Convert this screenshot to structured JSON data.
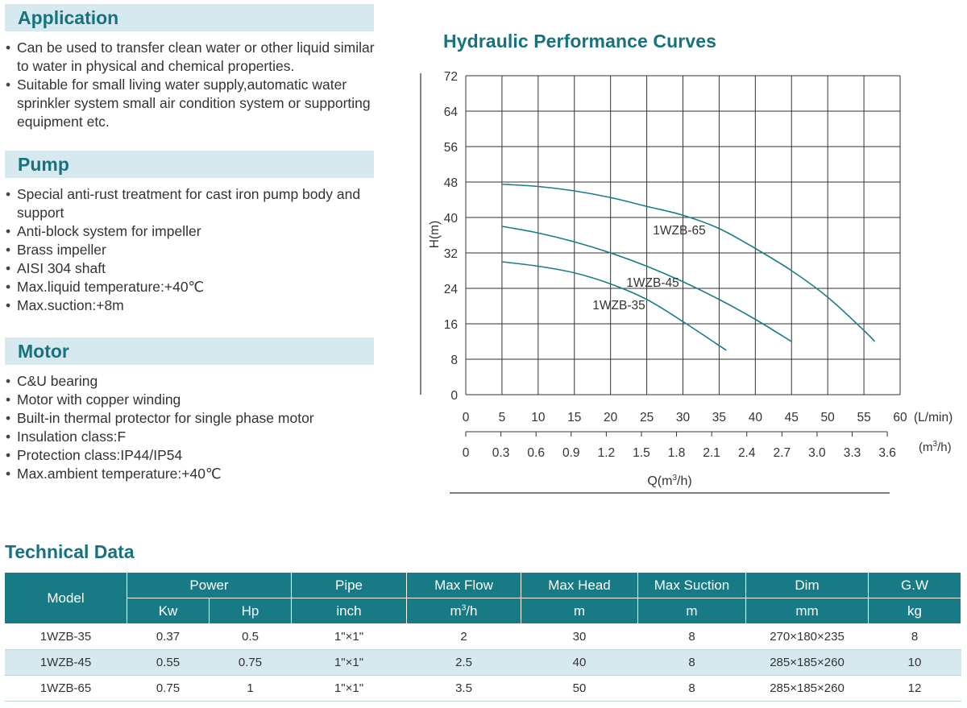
{
  "application": {
    "title": "Application",
    "items": [
      "Can be used to transfer clean water or other liquid similar to water in physical and chemical properties.",
      "Suitable for small living water supply,automatic water sprinkler system small air condition system or supporting equipment etc."
    ]
  },
  "pump": {
    "title": "Pump",
    "items": [
      "Special anti-rust treatment for cast iron pump body and support",
      "Anti-block system for impeller",
      "Brass impeller",
      "AISI 304 shaft",
      "Max.liquid temperature:+40℃",
      "Max.suction:+8m"
    ]
  },
  "motor": {
    "title": "Motor",
    "items": [
      "C&U bearing",
      "Motor with copper winding",
      "Built-in thermal protector for single phase motor",
      "Insulation class:F",
      "Protection class:IP44/IP54",
      "Max.ambient temperature:+40℃"
    ]
  },
  "chart_data": {
    "type": "line",
    "title": "Hydraulic Performance Curves",
    "ylabel": "H(m)",
    "xlabel_prefix": "Q(m",
    "xlabel_sup": "3",
    "xlabel_suffix": "/h)",
    "ylim": [
      0,
      72
    ],
    "yticks": [
      "0",
      "8",
      "16",
      "24",
      "32",
      "40",
      "48",
      "56",
      "64",
      "72"
    ],
    "xlim": [
      0,
      60
    ],
    "x_lmin_ticks": [
      "0",
      "5",
      "10",
      "15",
      "20",
      "25",
      "30",
      "35",
      "40",
      "45",
      "50",
      "55",
      "60"
    ],
    "x_lmin_unit": "(L/min)",
    "x_m3h_ticks": [
      "0",
      "0.3",
      "0.6",
      "0.9",
      "1.2",
      "1.5",
      "1.8",
      "2.1",
      "2.4",
      "2.7",
      "3.0",
      "3.3",
      "3.6"
    ],
    "x_m3h_unit_prefix": "(m",
    "x_m3h_unit_sup": "3",
    "x_m3h_unit_suffix": "/h)",
    "grid": true,
    "series": [
      {
        "name": "1WZB-65",
        "x": [
          5,
          10,
          15,
          20,
          25,
          30,
          35,
          40,
          45,
          50,
          55,
          56.5
        ],
        "y": [
          47.5,
          47,
          46,
          44.5,
          42.5,
          40.5,
          37.5,
          33,
          28,
          22,
          14.5,
          12
        ]
      },
      {
        "name": "1WZB-45",
        "x": [
          5,
          10,
          15,
          20,
          25,
          30,
          35,
          40,
          45
        ],
        "y": [
          38,
          36.5,
          34.5,
          32,
          29,
          25.5,
          21.5,
          17,
          12
        ]
      },
      {
        "name": "1WZB-35",
        "x": [
          5,
          10,
          15,
          20,
          25,
          30,
          36
        ],
        "y": [
          30,
          29,
          27.5,
          25,
          21.5,
          16.5,
          10
        ]
      }
    ]
  },
  "tech": {
    "title": "Technical Data",
    "headers": {
      "model": "Model",
      "power": "Power",
      "kw": "Kw",
      "hp": "Hp",
      "pipe": "Pipe",
      "pipe_unit": "inch",
      "max_flow": "Max Flow",
      "max_flow_unit_prefix": "m",
      "max_flow_unit_sup": "3",
      "max_flow_unit_suffix": "/h",
      "max_head": "Max Head",
      "max_head_unit": "m",
      "max_suction": "Max Suction",
      "max_suction_unit": "m",
      "dim": "Dim",
      "dim_unit": "mm",
      "gw": "G.W",
      "gw_unit": "kg"
    },
    "rows": [
      {
        "model": "1WZB-35",
        "kw": "0.37",
        "hp": "0.5",
        "pipe": "1\"×1\"",
        "flow": "2",
        "head": "30",
        "suction": "8",
        "dim": "270×180×235",
        "gw": "8"
      },
      {
        "model": "1WZB-45",
        "kw": "0.55",
        "hp": "0.75",
        "pipe": "1\"×1\"",
        "flow": "2.5",
        "head": "40",
        "suction": "8",
        "dim": "285×185×260",
        "gw": "10"
      },
      {
        "model": "1WZB-65",
        "kw": "0.75",
        "hp": "1",
        "pipe": "1\"×1\"",
        "flow": "3.5",
        "head": "50",
        "suction": "8",
        "dim": "285×185×260",
        "gw": "12"
      }
    ]
  },
  "colors": {
    "accent": "#17727d",
    "header_bg": "#177a85",
    "band_bg": "#d6e9ee",
    "curve": "#1a7d86"
  }
}
